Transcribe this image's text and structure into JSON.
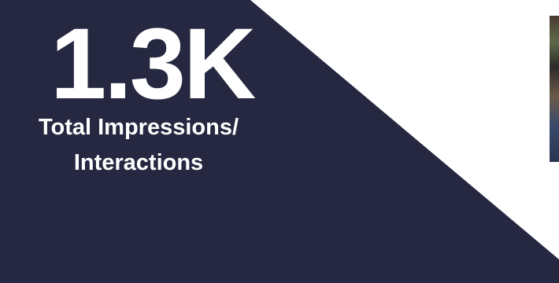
{
  "colors": {
    "panel": "#252840",
    "text": "#ffffff",
    "background": "#ffffff"
  },
  "stat": {
    "value": "1.3K",
    "label_line1": "Total Impressions/",
    "label_line2": "Interactions"
  }
}
